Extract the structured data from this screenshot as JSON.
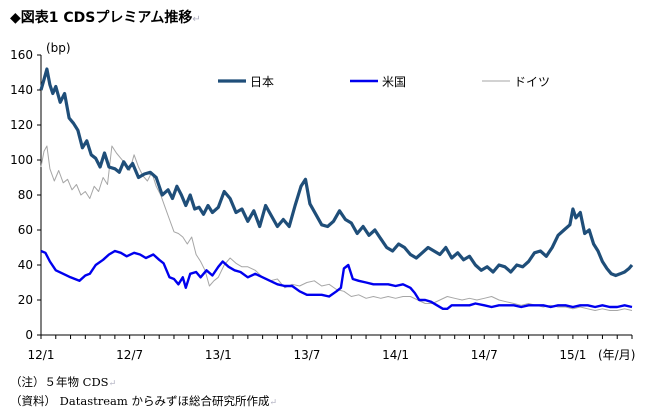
{
  "header": {
    "title": "◆図表1 CDSプレミアム推移",
    "return_mark": "↵"
  },
  "notes": {
    "note1": "（注）５年物 CDS",
    "note2": "（資料） Datastream からみずほ総合研究所作成",
    "return_mark": "↵"
  },
  "colors": {
    "japan": "#1f4e79",
    "us": "#0000ee",
    "germany": "#a6a6a6"
  },
  "chart_data": {
    "type": "line",
    "title": "CDSプレミアム推移",
    "ylabel": "(bp)",
    "xlabel": "(年/月)",
    "ylim": [
      0,
      160
    ],
    "yticks": [
      0,
      20,
      40,
      60,
      80,
      100,
      120,
      140,
      160
    ],
    "xlim": [
      0,
      40
    ],
    "xticks": [
      {
        "label": "12/1",
        "x": 0
      },
      {
        "label": "12/7",
        "x": 6
      },
      {
        "label": "13/1",
        "x": 12
      },
      {
        "label": "13/7",
        "x": 18
      },
      {
        "label": "14/1",
        "x": 24
      },
      {
        "label": "14/7",
        "x": 30
      },
      {
        "label": "15/1",
        "x": 36
      }
    ],
    "grid": false,
    "legend": "top",
    "series": [
      {
        "name": "日本",
        "color_key": "japan",
        "points": [
          [
            0,
            140
          ],
          [
            0.2,
            146
          ],
          [
            0.4,
            152
          ],
          [
            0.6,
            143
          ],
          [
            0.8,
            138
          ],
          [
            1,
            142
          ],
          [
            1.3,
            133
          ],
          [
            1.6,
            138
          ],
          [
            1.9,
            124
          ],
          [
            2.2,
            121
          ],
          [
            2.5,
            117
          ],
          [
            2.8,
            107
          ],
          [
            3.1,
            111
          ],
          [
            3.4,
            103
          ],
          [
            3.7,
            101
          ],
          [
            4,
            96
          ],
          [
            4.3,
            104
          ],
          [
            4.6,
            96
          ],
          [
            5,
            95
          ],
          [
            5.3,
            93
          ],
          [
            5.6,
            99
          ],
          [
            5.9,
            95
          ],
          [
            6.2,
            98
          ],
          [
            6.6,
            90
          ],
          [
            7,
            92
          ],
          [
            7.4,
            93
          ],
          [
            7.8,
            90
          ],
          [
            8.2,
            80
          ],
          [
            8.6,
            83
          ],
          [
            8.9,
            78
          ],
          [
            9.2,
            85
          ],
          [
            9.5,
            80
          ],
          [
            9.8,
            74
          ],
          [
            10.1,
            80
          ],
          [
            10.4,
            72
          ],
          [
            10.7,
            73
          ],
          [
            11,
            69
          ],
          [
            11.3,
            74
          ],
          [
            11.6,
            70
          ],
          [
            12,
            73
          ],
          [
            12.4,
            82
          ],
          [
            12.8,
            78
          ],
          [
            13.2,
            70
          ],
          [
            13.6,
            72
          ],
          [
            14,
            65
          ],
          [
            14.4,
            71
          ],
          [
            14.8,
            62
          ],
          [
            15.2,
            74
          ],
          [
            15.6,
            68
          ],
          [
            16,
            62
          ],
          [
            16.4,
            66
          ],
          [
            16.8,
            62
          ],
          [
            17.2,
            74
          ],
          [
            17.6,
            85
          ],
          [
            17.9,
            89
          ],
          [
            18.2,
            75
          ],
          [
            18.6,
            69
          ],
          [
            19,
            63
          ],
          [
            19.4,
            62
          ],
          [
            19.8,
            65
          ],
          [
            20.2,
            71
          ],
          [
            20.6,
            66
          ],
          [
            21,
            64
          ],
          [
            21.4,
            58
          ],
          [
            21.8,
            62
          ],
          [
            22.2,
            57
          ],
          [
            22.6,
            60
          ],
          [
            23,
            55
          ],
          [
            23.4,
            50
          ],
          [
            23.8,
            48
          ],
          [
            24.2,
            52
          ],
          [
            24.6,
            50
          ],
          [
            25,
            46
          ],
          [
            25.4,
            44
          ],
          [
            25.8,
            47
          ],
          [
            26.2,
            50
          ],
          [
            26.6,
            48
          ],
          [
            27,
            46
          ],
          [
            27.4,
            50
          ],
          [
            27.8,
            44
          ],
          [
            28.2,
            47
          ],
          [
            28.6,
            43
          ],
          [
            29,
            45
          ],
          [
            29.4,
            40
          ],
          [
            29.8,
            37
          ],
          [
            30.2,
            39
          ],
          [
            30.6,
            36
          ],
          [
            31,
            40
          ],
          [
            31.4,
            39
          ],
          [
            31.8,
            36
          ],
          [
            32.2,
            40
          ],
          [
            32.6,
            39
          ],
          [
            33,
            42
          ],
          [
            33.4,
            47
          ],
          [
            33.8,
            48
          ],
          [
            34.2,
            45
          ],
          [
            34.6,
            50
          ],
          [
            35,
            57
          ],
          [
            35.4,
            60
          ],
          [
            35.8,
            63
          ],
          [
            36,
            72
          ],
          [
            36.2,
            67
          ],
          [
            36.5,
            70
          ],
          [
            36.8,
            58
          ],
          [
            37.1,
            60
          ],
          [
            37.4,
            52
          ],
          [
            37.7,
            48
          ],
          [
            38,
            42
          ],
          [
            38.3,
            38
          ],
          [
            38.6,
            35
          ],
          [
            38.9,
            34
          ],
          [
            39.2,
            35
          ],
          [
            39.5,
            36
          ],
          [
            39.8,
            38
          ],
          [
            40,
            40
          ]
        ]
      },
      {
        "name": "米国",
        "color_key": "us",
        "points": [
          [
            0,
            48
          ],
          [
            0.3,
            47
          ],
          [
            0.6,
            42
          ],
          [
            1,
            37
          ],
          [
            1.5,
            35
          ],
          [
            2,
            33
          ],
          [
            2.6,
            31
          ],
          [
            3,
            34
          ],
          [
            3.3,
            35
          ],
          [
            3.7,
            40
          ],
          [
            4.2,
            43
          ],
          [
            4.6,
            46
          ],
          [
            5,
            48
          ],
          [
            5.4,
            47
          ],
          [
            5.8,
            45
          ],
          [
            6.3,
            47
          ],
          [
            6.7,
            46
          ],
          [
            7.1,
            44
          ],
          [
            7.6,
            46
          ],
          [
            8,
            43
          ],
          [
            8.3,
            41
          ],
          [
            8.7,
            33
          ],
          [
            9,
            32
          ],
          [
            9.3,
            29
          ],
          [
            9.6,
            33
          ],
          [
            9.8,
            27
          ],
          [
            10.1,
            35
          ],
          [
            10.5,
            36
          ],
          [
            10.8,
            33
          ],
          [
            11.2,
            37
          ],
          [
            11.6,
            34
          ],
          [
            12,
            39
          ],
          [
            12.3,
            42
          ],
          [
            12.7,
            39
          ],
          [
            13.1,
            37
          ],
          [
            13.5,
            36
          ],
          [
            14,
            33
          ],
          [
            14.5,
            35
          ],
          [
            15,
            33
          ],
          [
            15.5,
            31
          ],
          [
            16,
            29
          ],
          [
            16.5,
            28
          ],
          [
            17,
            28
          ],
          [
            17.5,
            25
          ],
          [
            18,
            23
          ],
          [
            18.5,
            23
          ],
          [
            19,
            23
          ],
          [
            19.5,
            22
          ],
          [
            20,
            25
          ],
          [
            20.3,
            27
          ],
          [
            20.5,
            38
          ],
          [
            20.8,
            40
          ],
          [
            21.1,
            32
          ],
          [
            21.5,
            31
          ],
          [
            22,
            30
          ],
          [
            22.5,
            29
          ],
          [
            23,
            29
          ],
          [
            23.5,
            29
          ],
          [
            24,
            28
          ],
          [
            24.5,
            29
          ],
          [
            25,
            27
          ],
          [
            25.3,
            24
          ],
          [
            25.6,
            20
          ],
          [
            26,
            20
          ],
          [
            26.4,
            19
          ],
          [
            26.8,
            17
          ],
          [
            27.2,
            15
          ],
          [
            27.5,
            15
          ],
          [
            27.8,
            17
          ],
          [
            28.2,
            17
          ],
          [
            28.6,
            17
          ],
          [
            29,
            17
          ],
          [
            29.4,
            18
          ],
          [
            30,
            17
          ],
          [
            30.5,
            16
          ],
          [
            31,
            17
          ],
          [
            31.5,
            17
          ],
          [
            32,
            17
          ],
          [
            32.5,
            16
          ],
          [
            33,
            17
          ],
          [
            33.5,
            17
          ],
          [
            34,
            17
          ],
          [
            34.5,
            16
          ],
          [
            35,
            17
          ],
          [
            35.5,
            17
          ],
          [
            36,
            16
          ],
          [
            36.5,
            17
          ],
          [
            37,
            17
          ],
          [
            37.5,
            16
          ],
          [
            38,
            17
          ],
          [
            38.5,
            16
          ],
          [
            39,
            16
          ],
          [
            39.5,
            17
          ],
          [
            40,
            16
          ]
        ]
      },
      {
        "name": "ドイツ",
        "color_key": "germany",
        "points": [
          [
            0,
            96
          ],
          [
            0.2,
            105
          ],
          [
            0.4,
            108
          ],
          [
            0.6,
            95
          ],
          [
            0.9,
            88
          ],
          [
            1.2,
            94
          ],
          [
            1.5,
            87
          ],
          [
            1.8,
            89
          ],
          [
            2.1,
            83
          ],
          [
            2.4,
            86
          ],
          [
            2.7,
            80
          ],
          [
            3,
            82
          ],
          [
            3.3,
            78
          ],
          [
            3.6,
            85
          ],
          [
            3.9,
            82
          ],
          [
            4.2,
            90
          ],
          [
            4.5,
            86
          ],
          [
            4.8,
            108
          ],
          [
            5.1,
            104
          ],
          [
            5.4,
            101
          ],
          [
            5.7,
            98
          ],
          [
            6,
            94
          ],
          [
            6.3,
            103
          ],
          [
            6.6,
            96
          ],
          [
            6.9,
            91
          ],
          [
            7.2,
            88
          ],
          [
            7.5,
            93
          ],
          [
            7.8,
            85
          ],
          [
            8.1,
            80
          ],
          [
            8.4,
            73
          ],
          [
            8.7,
            66
          ],
          [
            9,
            59
          ],
          [
            9.3,
            58
          ],
          [
            9.6,
            56
          ],
          [
            9.9,
            52
          ],
          [
            10.2,
            56
          ],
          [
            10.5,
            46
          ],
          [
            10.8,
            42
          ],
          [
            11.1,
            37
          ],
          [
            11.4,
            28
          ],
          [
            11.7,
            31
          ],
          [
            12,
            33
          ],
          [
            12.4,
            40
          ],
          [
            12.8,
            44
          ],
          [
            13.2,
            41
          ],
          [
            13.6,
            39
          ],
          [
            14,
            39
          ],
          [
            14.5,
            37
          ],
          [
            15,
            33
          ],
          [
            15.5,
            31
          ],
          [
            16,
            32
          ],
          [
            16.5,
            27
          ],
          [
            17,
            29
          ],
          [
            17.5,
            28
          ],
          [
            18,
            30
          ],
          [
            18.5,
            31
          ],
          [
            19,
            28
          ],
          [
            19.5,
            29
          ],
          [
            20,
            26
          ],
          [
            20.5,
            25
          ],
          [
            21,
            22
          ],
          [
            21.5,
            23
          ],
          [
            22,
            21
          ],
          [
            22.5,
            22
          ],
          [
            23,
            21
          ],
          [
            23.5,
            22
          ],
          [
            24,
            21
          ],
          [
            24.5,
            22
          ],
          [
            25,
            22
          ],
          [
            25.5,
            20
          ],
          [
            26,
            18
          ],
          [
            26.5,
            18
          ],
          [
            27,
            20
          ],
          [
            27.5,
            22
          ],
          [
            28,
            21
          ],
          [
            28.5,
            20
          ],
          [
            29,
            21
          ],
          [
            29.5,
            20
          ],
          [
            30,
            21
          ],
          [
            30.5,
            22
          ],
          [
            31,
            20
          ],
          [
            31.5,
            19
          ],
          [
            32,
            18
          ],
          [
            32.5,
            17
          ],
          [
            33,
            18
          ],
          [
            33.5,
            17
          ],
          [
            34,
            16
          ],
          [
            34.5,
            17
          ],
          [
            35,
            16
          ],
          [
            35.5,
            16
          ],
          [
            36,
            15
          ],
          [
            36.5,
            16
          ],
          [
            37,
            15
          ],
          [
            37.5,
            14
          ],
          [
            38,
            15
          ],
          [
            38.5,
            14
          ],
          [
            39,
            14
          ],
          [
            39.5,
            15
          ],
          [
            40,
            14
          ]
        ]
      }
    ]
  }
}
